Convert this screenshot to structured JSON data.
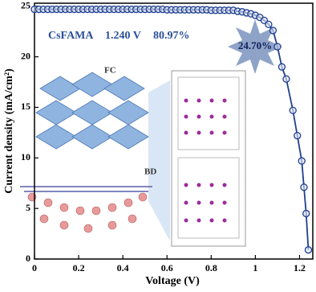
{
  "chart_data": {
    "type": "line",
    "x_label": "Voltage (V)",
    "y_label": "Current density (mA/cm²)",
    "annotations": [
      "CsFAMA",
      "1.240 V",
      "80.97%",
      "24.70%",
      "FC",
      "BD"
    ],
    "x": [
      0,
      0.02,
      0.04,
      0.06,
      0.08,
      0.1,
      0.12,
      0.14,
      0.16,
      0.18,
      0.2,
      0.22,
      0.24,
      0.26,
      0.28,
      0.3,
      0.32,
      0.34,
      0.36,
      0.38,
      0.4,
      0.42,
      0.44,
      0.46,
      0.48,
      0.5,
      0.52,
      0.54,
      0.56,
      0.58,
      0.6,
      0.62,
      0.64,
      0.66,
      0.68,
      0.7,
      0.72,
      0.74,
      0.76,
      0.78,
      0.8,
      0.82,
      0.84,
      0.86,
      0.88,
      0.9,
      0.92,
      0.94,
      0.96,
      0.98,
      1.0,
      1.02,
      1.04,
      1.06,
      1.08,
      1.1,
      1.12,
      1.14,
      1.17,
      1.19,
      1.21,
      1.22,
      1.23,
      1.24
    ],
    "values": [
      24.7,
      24.7,
      24.7,
      24.7,
      24.7,
      24.7,
      24.7,
      24.7,
      24.7,
      24.7,
      24.7,
      24.7,
      24.7,
      24.7,
      24.7,
      24.7,
      24.7,
      24.7,
      24.7,
      24.7,
      24.7,
      24.7,
      24.7,
      24.7,
      24.7,
      24.7,
      24.7,
      24.7,
      24.7,
      24.7,
      24.65,
      24.65,
      24.65,
      24.65,
      24.65,
      24.65,
      24.65,
      24.65,
      24.65,
      24.65,
      24.6,
      24.6,
      24.6,
      24.6,
      24.6,
      24.6,
      24.5,
      24.45,
      24.35,
      24.25,
      24.1,
      23.9,
      23.6,
      23.2,
      22.6,
      21.0,
      19.0,
      17.8,
      14.7,
      12.2,
      9.7,
      7.1,
      4.5,
      0.9
    ],
    "color": "#1f3f8f",
    "xlim": [
      0,
      1.26
    ],
    "ylim": [
      0,
      25.3
    ],
    "xticks": [
      0,
      0.2,
      0.4,
      0.6,
      0.8,
      1.0,
      1.2
    ],
    "yticks": [
      0,
      5,
      10,
      15,
      20,
      25
    ]
  }
}
